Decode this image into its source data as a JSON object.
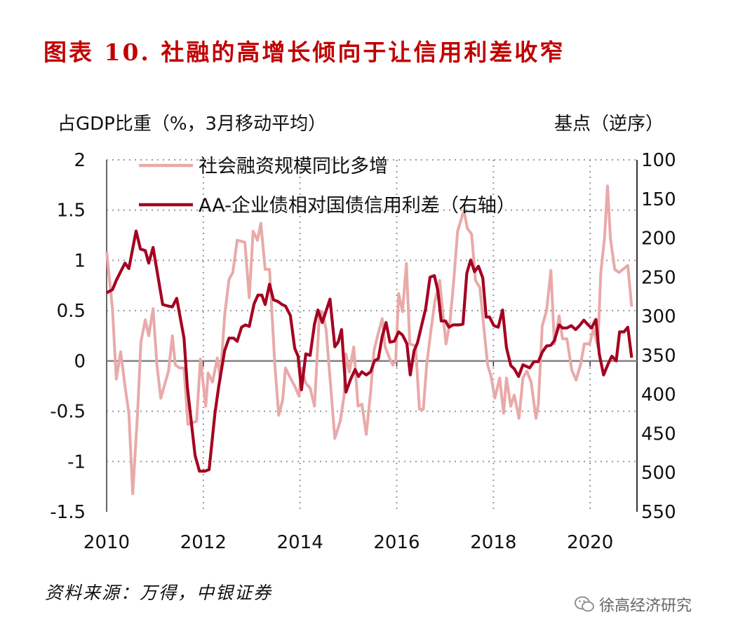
{
  "chart_data": {
    "type": "line",
    "title": "图表 10.  社融的高增长倾向于让信用利差收窄",
    "ylabel_left": "占GDP比重（%，3月移动平均）",
    "ylabel_right": "基点（逆序）",
    "xlim": [
      2010,
      2020.97
    ],
    "ylim_left": [
      -1.5,
      2
    ],
    "ylim_right": [
      100,
      550
    ],
    "right_axis_inverted": true,
    "x_ticks": [
      "2010",
      "2012",
      "2014",
      "2016",
      "2018",
      "2020"
    ],
    "y_ticks_left": [
      "2",
      "1.5",
      "1",
      "0.5",
      "0",
      "-0.5",
      "-1",
      "-1.5"
    ],
    "y_ticks_right": [
      "100",
      "150",
      "200",
      "250",
      "300",
      "350",
      "400",
      "450",
      "500",
      "550"
    ],
    "grid": true,
    "legend_placement": "top-left",
    "series": [
      {
        "name": "社会融资规模同比多增",
        "axis": "left",
        "color": "#e8aaa9",
        "points": [
          [
            2010.0,
            1.09
          ],
          [
            2010.12,
            0.52
          ],
          [
            2010.2,
            -0.18
          ],
          [
            2010.29,
            0.09
          ],
          [
            2010.38,
            -0.25
          ],
          [
            2010.46,
            -0.52
          ],
          [
            2010.54,
            -1.32
          ],
          [
            2010.64,
            -0.52
          ],
          [
            2010.71,
            0.19
          ],
          [
            2010.8,
            0.41
          ],
          [
            2010.87,
            0.25
          ],
          [
            2010.96,
            0.52
          ],
          [
            2011.04,
            -0.04
          ],
          [
            2011.12,
            -0.37
          ],
          [
            2011.28,
            -0.1
          ],
          [
            2011.36,
            0.25
          ],
          [
            2011.42,
            -0.04
          ],
          [
            2011.51,
            -0.07
          ],
          [
            2011.6,
            -0.07
          ],
          [
            2011.68,
            -0.63
          ],
          [
            2011.86,
            -0.6
          ],
          [
            2011.94,
            0.02
          ],
          [
            2012.05,
            -0.45
          ],
          [
            2012.1,
            -0.12
          ],
          [
            2012.19,
            -0.21
          ],
          [
            2012.29,
            0.03
          ],
          [
            2012.35,
            -0.18
          ],
          [
            2012.44,
            0.45
          ],
          [
            2012.53,
            0.81
          ],
          [
            2012.61,
            0.88
          ],
          [
            2012.7,
            1.2
          ],
          [
            2012.86,
            1.18
          ],
          [
            2012.95,
            0.63
          ],
          [
            2013.03,
            1.29
          ],
          [
            2013.12,
            1.2
          ],
          [
            2013.19,
            1.37
          ],
          [
            2013.28,
            0.91
          ],
          [
            2013.37,
            0.91
          ],
          [
            2013.48,
            -0.04
          ],
          [
            2013.56,
            -0.54
          ],
          [
            2013.64,
            -0.39
          ],
          [
            2013.7,
            -0.07
          ],
          [
            2013.79,
            -0.16
          ],
          [
            2013.89,
            -0.25
          ],
          [
            2013.98,
            -0.35
          ],
          [
            2014.03,
            -0.07
          ],
          [
            2014.12,
            -0.22
          ],
          [
            2014.21,
            -0.27
          ],
          [
            2014.3,
            -0.45
          ],
          [
            2014.4,
            0.45
          ],
          [
            2014.46,
            0.49
          ],
          [
            2014.54,
            0.31
          ],
          [
            2014.72,
            -0.77
          ],
          [
            2014.83,
            -0.6
          ],
          [
            2014.91,
            -0.35
          ],
          [
            2014.95,
            0.07
          ],
          [
            2015.02,
            -0.11
          ],
          [
            2015.11,
            0.14
          ],
          [
            2015.2,
            -0.45
          ],
          [
            2015.28,
            -0.43
          ],
          [
            2015.37,
            -0.73
          ],
          [
            2015.46,
            -0.31
          ],
          [
            2015.53,
            0.1
          ],
          [
            2015.6,
            0.24
          ],
          [
            2015.7,
            0.42
          ],
          [
            2015.76,
            0.14
          ],
          [
            2015.85,
            0.03
          ],
          [
            2015.92,
            -0.04
          ],
          [
            2015.98,
            0.0
          ],
          [
            2016.04,
            0.67
          ],
          [
            2016.12,
            0.49
          ],
          [
            2016.2,
            0.97
          ],
          [
            2016.27,
            0.17
          ],
          [
            2016.39,
            0.15
          ],
          [
            2016.47,
            -0.48
          ],
          [
            2016.55,
            -0.48
          ],
          [
            2016.62,
            -0.04
          ],
          [
            2016.71,
            0.31
          ],
          [
            2016.79,
            0.59
          ],
          [
            2016.89,
            0.8
          ],
          [
            2016.95,
            0.49
          ],
          [
            2017.02,
            0.17
          ],
          [
            2017.1,
            0.38
          ],
          [
            2017.18,
            0.8
          ],
          [
            2017.26,
            1.29
          ],
          [
            2017.39,
            1.5
          ],
          [
            2017.46,
            1.32
          ],
          [
            2017.55,
            1.26
          ],
          [
            2017.63,
            0.8
          ],
          [
            2017.72,
            0.73
          ],
          [
            2017.88,
            -0.04
          ],
          [
            2017.95,
            -0.15
          ],
          [
            2018.03,
            -0.37
          ],
          [
            2018.13,
            -0.17
          ],
          [
            2018.21,
            -0.52
          ],
          [
            2018.27,
            -0.17
          ],
          [
            2018.36,
            -0.45
          ],
          [
            2018.43,
            -0.34
          ],
          [
            2018.53,
            -0.57
          ],
          [
            2018.61,
            -0.17
          ],
          [
            2018.69,
            -0.1
          ],
          [
            2018.78,
            -0.21
          ],
          [
            2018.88,
            -0.57
          ],
          [
            2018.93,
            -0.43
          ],
          [
            2019.01,
            0.35
          ],
          [
            2019.1,
            0.5
          ],
          [
            2019.19,
            0.9
          ],
          [
            2019.26,
            0.17
          ],
          [
            2019.36,
            0.45
          ],
          [
            2019.43,
            0.22
          ],
          [
            2019.52,
            0.22
          ],
          [
            2019.62,
            -0.09
          ],
          [
            2019.71,
            -0.19
          ],
          [
            2019.8,
            -0.04
          ],
          [
            2019.88,
            0.17
          ],
          [
            2019.99,
            0.17
          ],
          [
            2020.07,
            0.32
          ],
          [
            2020.16,
            0.14
          ],
          [
            2020.22,
            0.87
          ],
          [
            2020.3,
            1.23
          ],
          [
            2020.36,
            1.74
          ],
          [
            2020.42,
            1.22
          ],
          [
            2020.51,
            0.91
          ],
          [
            2020.6,
            0.88
          ],
          [
            2020.78,
            0.95
          ],
          [
            2020.86,
            0.54
          ]
        ]
      },
      {
        "name": "AA-企业债相对国债信用利差（右轴）",
        "axis": "right",
        "color": "#a50021",
        "points": [
          [
            2010.0,
            270
          ],
          [
            2010.12,
            266
          ],
          [
            2010.2,
            254
          ],
          [
            2010.29,
            243
          ],
          [
            2010.38,
            232
          ],
          [
            2010.46,
            239
          ],
          [
            2010.61,
            191
          ],
          [
            2010.7,
            214
          ],
          [
            2010.8,
            216
          ],
          [
            2010.87,
            232
          ],
          [
            2010.96,
            212
          ],
          [
            2011.16,
            285
          ],
          [
            2011.28,
            287
          ],
          [
            2011.36,
            288
          ],
          [
            2011.45,
            277
          ],
          [
            2011.6,
            328
          ],
          [
            2011.67,
            391
          ],
          [
            2011.83,
            478
          ],
          [
            2011.92,
            498
          ],
          [
            2012.03,
            498
          ],
          [
            2012.12,
            496
          ],
          [
            2012.24,
            424
          ],
          [
            2012.32,
            389
          ],
          [
            2012.44,
            344
          ],
          [
            2012.53,
            328
          ],
          [
            2012.63,
            328
          ],
          [
            2012.7,
            332
          ],
          [
            2012.79,
            314
          ],
          [
            2012.87,
            311
          ],
          [
            2012.95,
            313
          ],
          [
            2013.05,
            284
          ],
          [
            2013.13,
            273
          ],
          [
            2013.21,
            273
          ],
          [
            2013.28,
            285
          ],
          [
            2013.37,
            259
          ],
          [
            2013.45,
            279
          ],
          [
            2013.54,
            281
          ],
          [
            2013.63,
            285
          ],
          [
            2013.7,
            287
          ],
          [
            2013.8,
            299
          ],
          [
            2013.89,
            341
          ],
          [
            2013.96,
            351
          ],
          [
            2014.03,
            394
          ],
          [
            2014.12,
            348
          ],
          [
            2014.21,
            350
          ],
          [
            2014.3,
            310
          ],
          [
            2014.37,
            292
          ],
          [
            2014.46,
            308
          ],
          [
            2014.62,
            278
          ],
          [
            2014.72,
            339
          ],
          [
            2014.79,
            333
          ],
          [
            2014.86,
            317
          ],
          [
            2014.95,
            397
          ],
          [
            2015.05,
            380
          ],
          [
            2015.14,
            368
          ],
          [
            2015.21,
            377
          ],
          [
            2015.28,
            371
          ],
          [
            2015.37,
            375
          ],
          [
            2015.46,
            371
          ],
          [
            2015.54,
            357
          ],
          [
            2015.62,
            354
          ],
          [
            2015.7,
            326
          ],
          [
            2015.78,
            308
          ],
          [
            2015.86,
            333
          ],
          [
            2015.95,
            332
          ],
          [
            2016.04,
            320
          ],
          [
            2016.12,
            324
          ],
          [
            2016.21,
            335
          ],
          [
            2016.28,
            375
          ],
          [
            2016.36,
            344
          ],
          [
            2016.43,
            334
          ],
          [
            2016.53,
            308
          ],
          [
            2016.6,
            290
          ],
          [
            2016.69,
            250
          ],
          [
            2016.78,
            248
          ],
          [
            2016.85,
            267
          ],
          [
            2016.92,
            306
          ],
          [
            2017.01,
            306
          ],
          [
            2017.08,
            314
          ],
          [
            2017.17,
            311
          ],
          [
            2017.29,
            311
          ],
          [
            2017.37,
            310
          ],
          [
            2017.45,
            245
          ],
          [
            2017.53,
            228
          ],
          [
            2017.61,
            243
          ],
          [
            2017.69,
            236
          ],
          [
            2017.78,
            251
          ],
          [
            2017.85,
            301
          ],
          [
            2017.92,
            301
          ],
          [
            2018.01,
            312
          ],
          [
            2018.1,
            314
          ],
          [
            2018.19,
            292
          ],
          [
            2018.27,
            340
          ],
          [
            2018.36,
            363
          ],
          [
            2018.43,
            367
          ],
          [
            2018.52,
            377
          ],
          [
            2018.61,
            362
          ],
          [
            2018.75,
            366
          ],
          [
            2018.84,
            358
          ],
          [
            2018.93,
            358
          ],
          [
            2019.01,
            346
          ],
          [
            2019.1,
            338
          ],
          [
            2019.19,
            337
          ],
          [
            2019.26,
            331
          ],
          [
            2019.36,
            311
          ],
          [
            2019.43,
            315
          ],
          [
            2019.52,
            315
          ],
          [
            2019.61,
            312
          ],
          [
            2019.7,
            317
          ],
          [
            2019.78,
            312
          ],
          [
            2019.87,
            305
          ],
          [
            2019.96,
            311
          ],
          [
            2020.03,
            315
          ],
          [
            2020.12,
            304
          ],
          [
            2020.19,
            348
          ],
          [
            2020.28,
            375
          ],
          [
            2020.38,
            360
          ],
          [
            2020.45,
            351
          ],
          [
            2020.54,
            357
          ],
          [
            2020.61,
            320
          ],
          [
            2020.7,
            320
          ],
          [
            2020.78,
            314
          ],
          [
            2020.86,
            353
          ]
        ]
      }
    ],
    "source": "资料来源：万得，中银证券"
  },
  "watermark": {
    "text": "徐高经济研究",
    "icon": "wechat-icon"
  }
}
